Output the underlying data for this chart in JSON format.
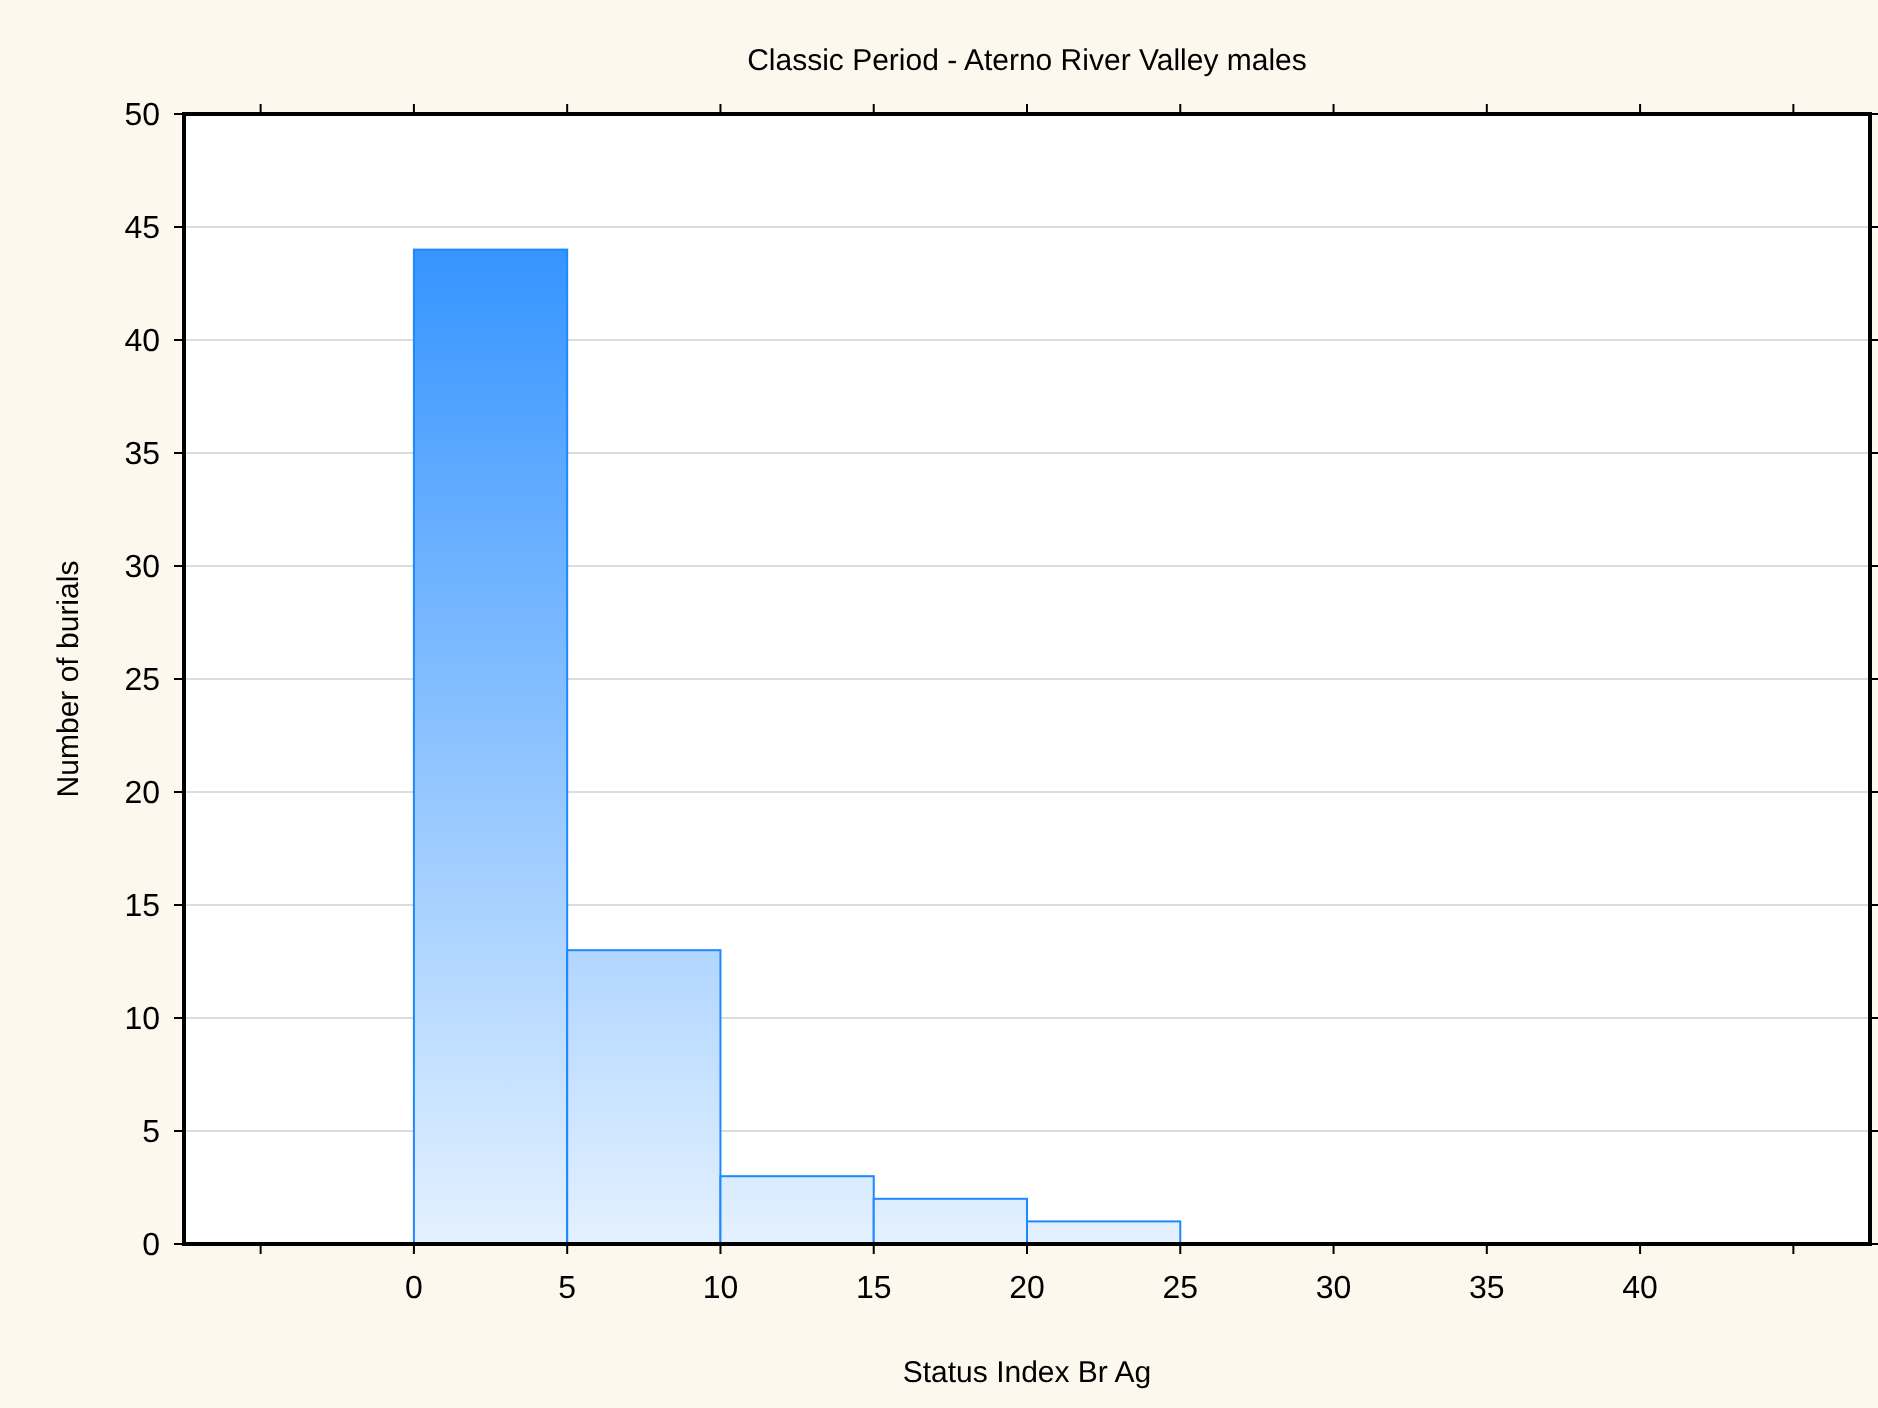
{
  "chart_data": {
    "type": "histogram",
    "title": "Classic Period - Aterno River Valley males",
    "xlabel": "Status Index Br Ag",
    "ylabel": "Number of burials",
    "bins": [
      0,
      5,
      10,
      15,
      20,
      25
    ],
    "values": [
      44,
      13,
      3,
      2,
      1
    ],
    "color": "#1e88ff",
    "xlim": [
      -7.5,
      47.5
    ],
    "xticks": [
      {
        "value": -5,
        "label": null
      },
      0,
      5,
      10,
      15,
      20,
      25,
      30,
      35,
      40,
      {
        "value": 45,
        "label": null
      }
    ],
    "ylim": [
      0,
      50
    ],
    "yticks": [
      0,
      5,
      10,
      15,
      20,
      25,
      30,
      35,
      40,
      45,
      50
    ],
    "grid": "y"
  }
}
